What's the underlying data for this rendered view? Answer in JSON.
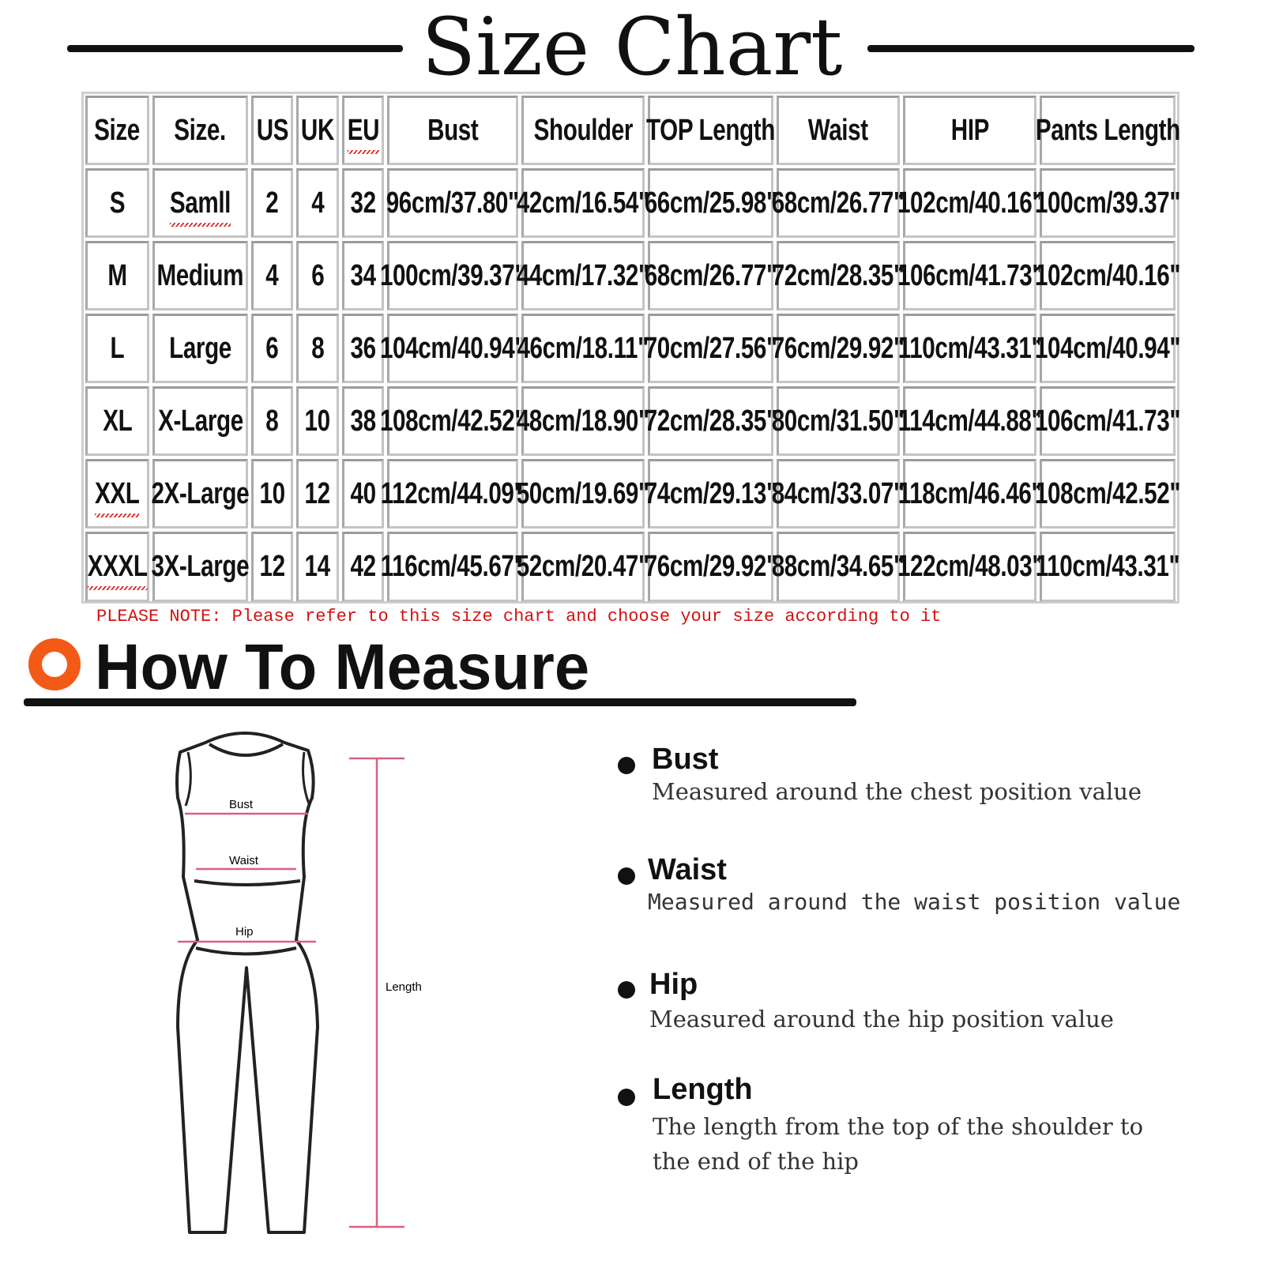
{
  "title": "Size Chart",
  "table": {
    "headers": [
      "Size",
      "Size.",
      "US",
      "UK",
      "EU",
      "Bust",
      "Shoulder",
      "TOP Length",
      "Waist",
      "HIP",
      "Pants Length"
    ],
    "rows": [
      [
        "S",
        "Samll",
        "2",
        "4",
        "32",
        "96cm/37.80\"",
        "42cm/16.54\"",
        "66cm/25.98\"",
        "68cm/26.77\"",
        "102cm/40.16\"",
        "100cm/39.37\""
      ],
      [
        "M",
        "Medium",
        "4",
        "6",
        "34",
        "100cm/39.37\"",
        "44cm/17.32\"",
        "68cm/26.77\"",
        "72cm/28.35\"",
        "106cm/41.73\"",
        "102cm/40.16\""
      ],
      [
        "L",
        "Large",
        "6",
        "8",
        "36",
        "104cm/40.94\"",
        "46cm/18.11\"",
        "70cm/27.56\"",
        "76cm/29.92\"",
        "110cm/43.31\"",
        "104cm/40.94\""
      ],
      [
        "XL",
        "X-Large",
        "8",
        "10",
        "38",
        "108cm/42.52\"",
        "48cm/18.90\"",
        "72cm/28.35\"",
        "80cm/31.50\"",
        "114cm/44.88\"",
        "106cm/41.73\""
      ],
      [
        "XXL",
        "2X-Large",
        "10",
        "12",
        "40",
        "112cm/44.09\"",
        "50cm/19.69\"",
        "74cm/29.13\"",
        "84cm/33.07\"",
        "118cm/46.46\"",
        "108cm/42.52\""
      ],
      [
        "XXXL",
        "3X-Large",
        "12",
        "14",
        "42",
        "116cm/45.67\"",
        "52cm/20.47\"",
        "76cm/29.92\"",
        "88cm/34.65\"",
        "122cm/48.03\"",
        "110cm/43.31\""
      ]
    ]
  },
  "note": "PLEASE NOTE: Please refer to this size chart and choose your size according to it",
  "how_to": {
    "title": "How To Measure",
    "accent_color": "#f25a16",
    "figure_labels": {
      "bust": "Bust",
      "waist": "Waist",
      "hip": "Hip",
      "length": "Length"
    },
    "items": [
      {
        "label": "Bust",
        "lines": [
          "Measured around the chest position value"
        ]
      },
      {
        "label": "Waist",
        "lines": [
          "Measured around the waist position value"
        ]
      },
      {
        "label": "Hip",
        "lines": [
          "Measured around the  hip position value"
        ]
      },
      {
        "label": "Length",
        "lines": [
          "The length from the top of the shoulder to",
          "the end of the hip"
        ]
      }
    ]
  }
}
